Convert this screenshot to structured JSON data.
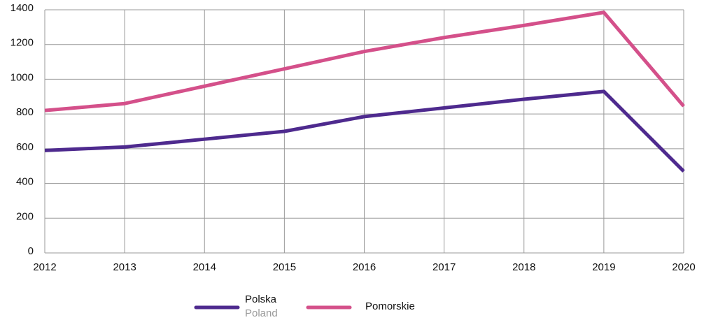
{
  "chart_data": {
    "type": "line",
    "categories": [
      "2012",
      "2013",
      "2014",
      "2015",
      "2016",
      "2017",
      "2018",
      "2019",
      "2020"
    ],
    "series": [
      {
        "name": "Polska",
        "translation": "Poland",
        "color": "#4e2a8e",
        "values": [
          590,
          610,
          655,
          700,
          785,
          835,
          885,
          930,
          470
        ]
      },
      {
        "name": "Pomorskie",
        "color": "#d4508a",
        "values": [
          820,
          860,
          960,
          1060,
          1160,
          1240,
          1310,
          1385,
          845
        ]
      }
    ],
    "ylim": [
      0,
      1400
    ],
    "yticks": [
      0,
      200,
      400,
      600,
      800,
      1000,
      1200,
      1400
    ],
    "grid": true,
    "legend": "bottom"
  }
}
